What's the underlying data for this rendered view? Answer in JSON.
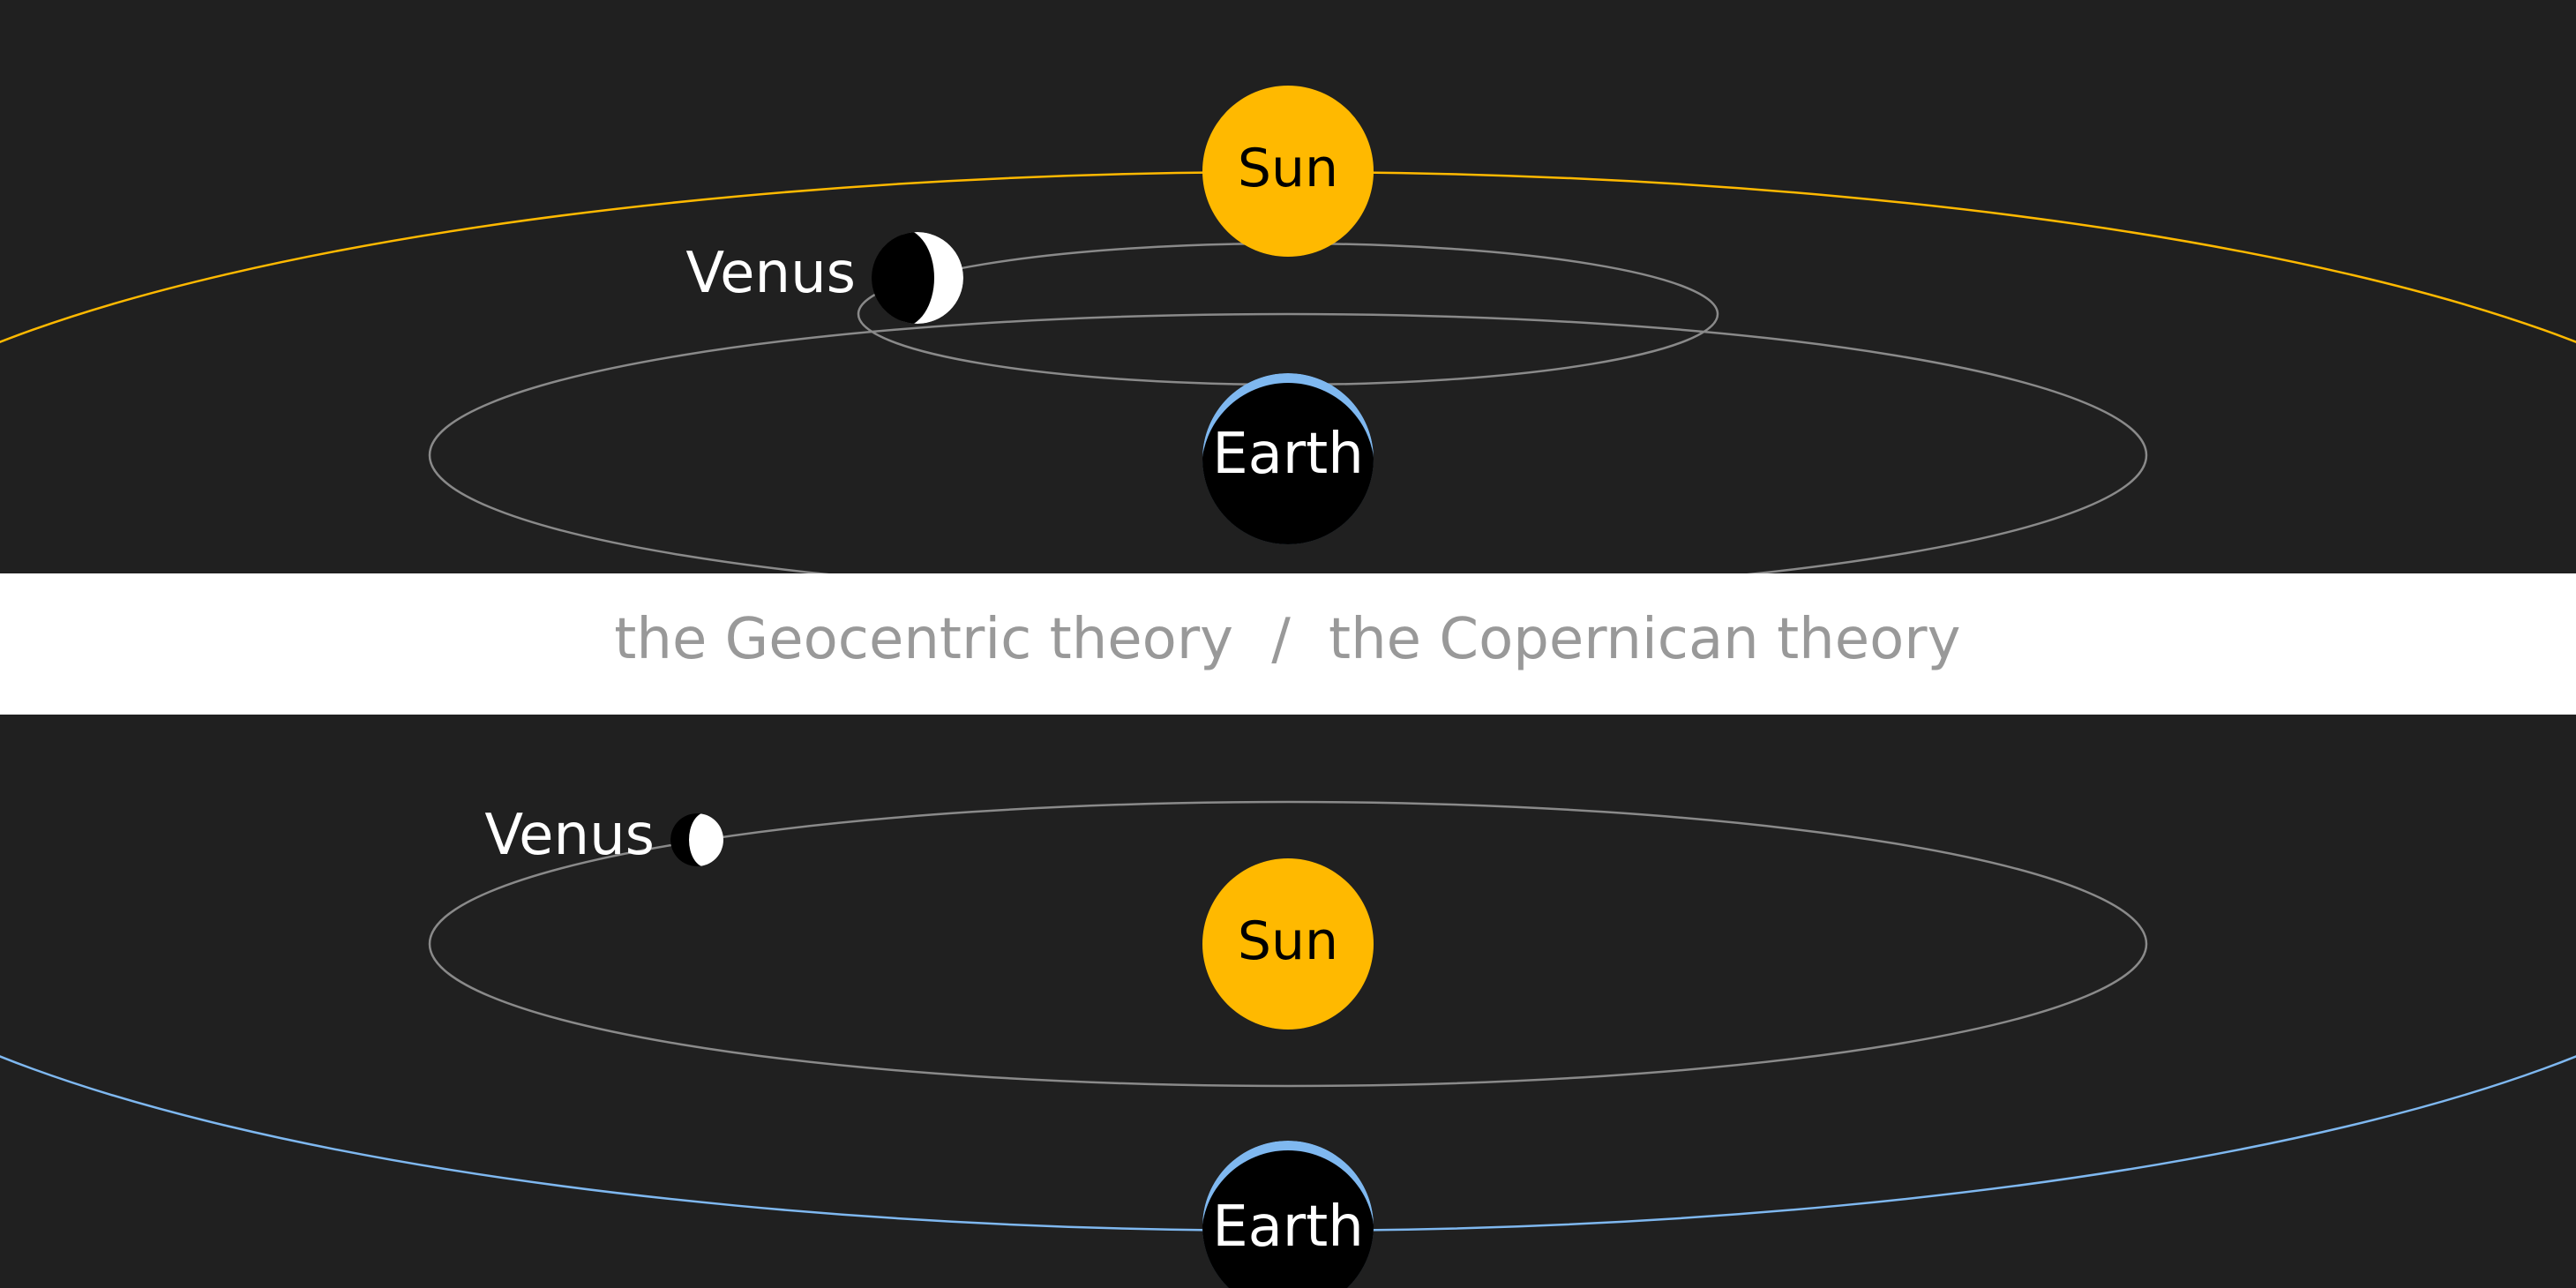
{
  "colors": {
    "background": "#202020",
    "band": "#ffffff",
    "band_text": "#999999",
    "orbit": "#8a8a8a",
    "sun": "#ffb900",
    "sun_orbit": "#ffb900",
    "earth": "#000000",
    "earth_glow": "#7fb8f0",
    "earth_orbit": "#7fb8f0",
    "venus_lit": "#ffffff",
    "venus_dark": "#000000",
    "label_light": "#ffffff",
    "label_dark": "#000000"
  },
  "caption": {
    "geocentric": "the Geocentric theory",
    "separator": "∕",
    "copernican": "the Copernican theory"
  },
  "geocentric": {
    "sun": "Sun",
    "venus": "Venus",
    "earth": "Earth",
    "venus_phase": "crescent"
  },
  "copernican": {
    "sun": "Sun",
    "venus": "Venus",
    "earth": "Earth",
    "venus_phase": "gibbous"
  }
}
